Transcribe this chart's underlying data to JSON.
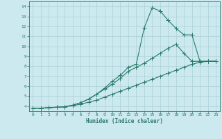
{
  "xlabel": "Humidex (Indice chaleur)",
  "bg_color": "#cce9ef",
  "grid_color": "#aad0d8",
  "line_color": "#2a7a6a",
  "line1_x": [
    0,
    1,
    2,
    3,
    4,
    5,
    6,
    7,
    8,
    9,
    10,
    11,
    12,
    13,
    14,
    15,
    16,
    17,
    18,
    19,
    20,
    21,
    22,
    23
  ],
  "line1_y": [
    3.8,
    3.8,
    3.85,
    3.9,
    3.95,
    4.1,
    4.35,
    4.7,
    5.2,
    5.8,
    6.5,
    7.1,
    7.9,
    8.2,
    11.85,
    13.85,
    13.55,
    12.6,
    11.8,
    11.15,
    11.15,
    8.5,
    8.5,
    8.5
  ],
  "line2_x": [
    0,
    1,
    2,
    3,
    4,
    5,
    6,
    7,
    8,
    9,
    10,
    11,
    12,
    13,
    14,
    15,
    16,
    17,
    18,
    19,
    20,
    21,
    22,
    23
  ],
  "line2_y": [
    3.8,
    3.8,
    3.85,
    3.9,
    3.95,
    4.1,
    4.35,
    4.7,
    5.2,
    5.7,
    6.2,
    6.8,
    7.5,
    7.9,
    8.3,
    8.8,
    9.3,
    9.8,
    10.2,
    9.3,
    8.5,
    8.5,
    8.5,
    8.5
  ],
  "line3_x": [
    0,
    1,
    2,
    3,
    4,
    5,
    6,
    7,
    8,
    9,
    10,
    11,
    12,
    13,
    14,
    15,
    16,
    17,
    18,
    19,
    20,
    21,
    22,
    23
  ],
  "line3_y": [
    3.8,
    3.8,
    3.85,
    3.9,
    3.95,
    4.05,
    4.2,
    4.4,
    4.6,
    4.9,
    5.2,
    5.5,
    5.8,
    6.1,
    6.4,
    6.7,
    7.0,
    7.3,
    7.6,
    7.9,
    8.2,
    8.4,
    8.5,
    8.5
  ],
  "xlim": [
    -0.5,
    23.5
  ],
  "ylim": [
    3.5,
    14.5
  ],
  "yticks": [
    4,
    5,
    6,
    7,
    8,
    9,
    10,
    11,
    12,
    13,
    14
  ],
  "xticks": [
    0,
    1,
    2,
    3,
    4,
    5,
    6,
    7,
    8,
    9,
    10,
    11,
    12,
    13,
    14,
    15,
    16,
    17,
    18,
    19,
    20,
    21,
    22,
    23
  ]
}
